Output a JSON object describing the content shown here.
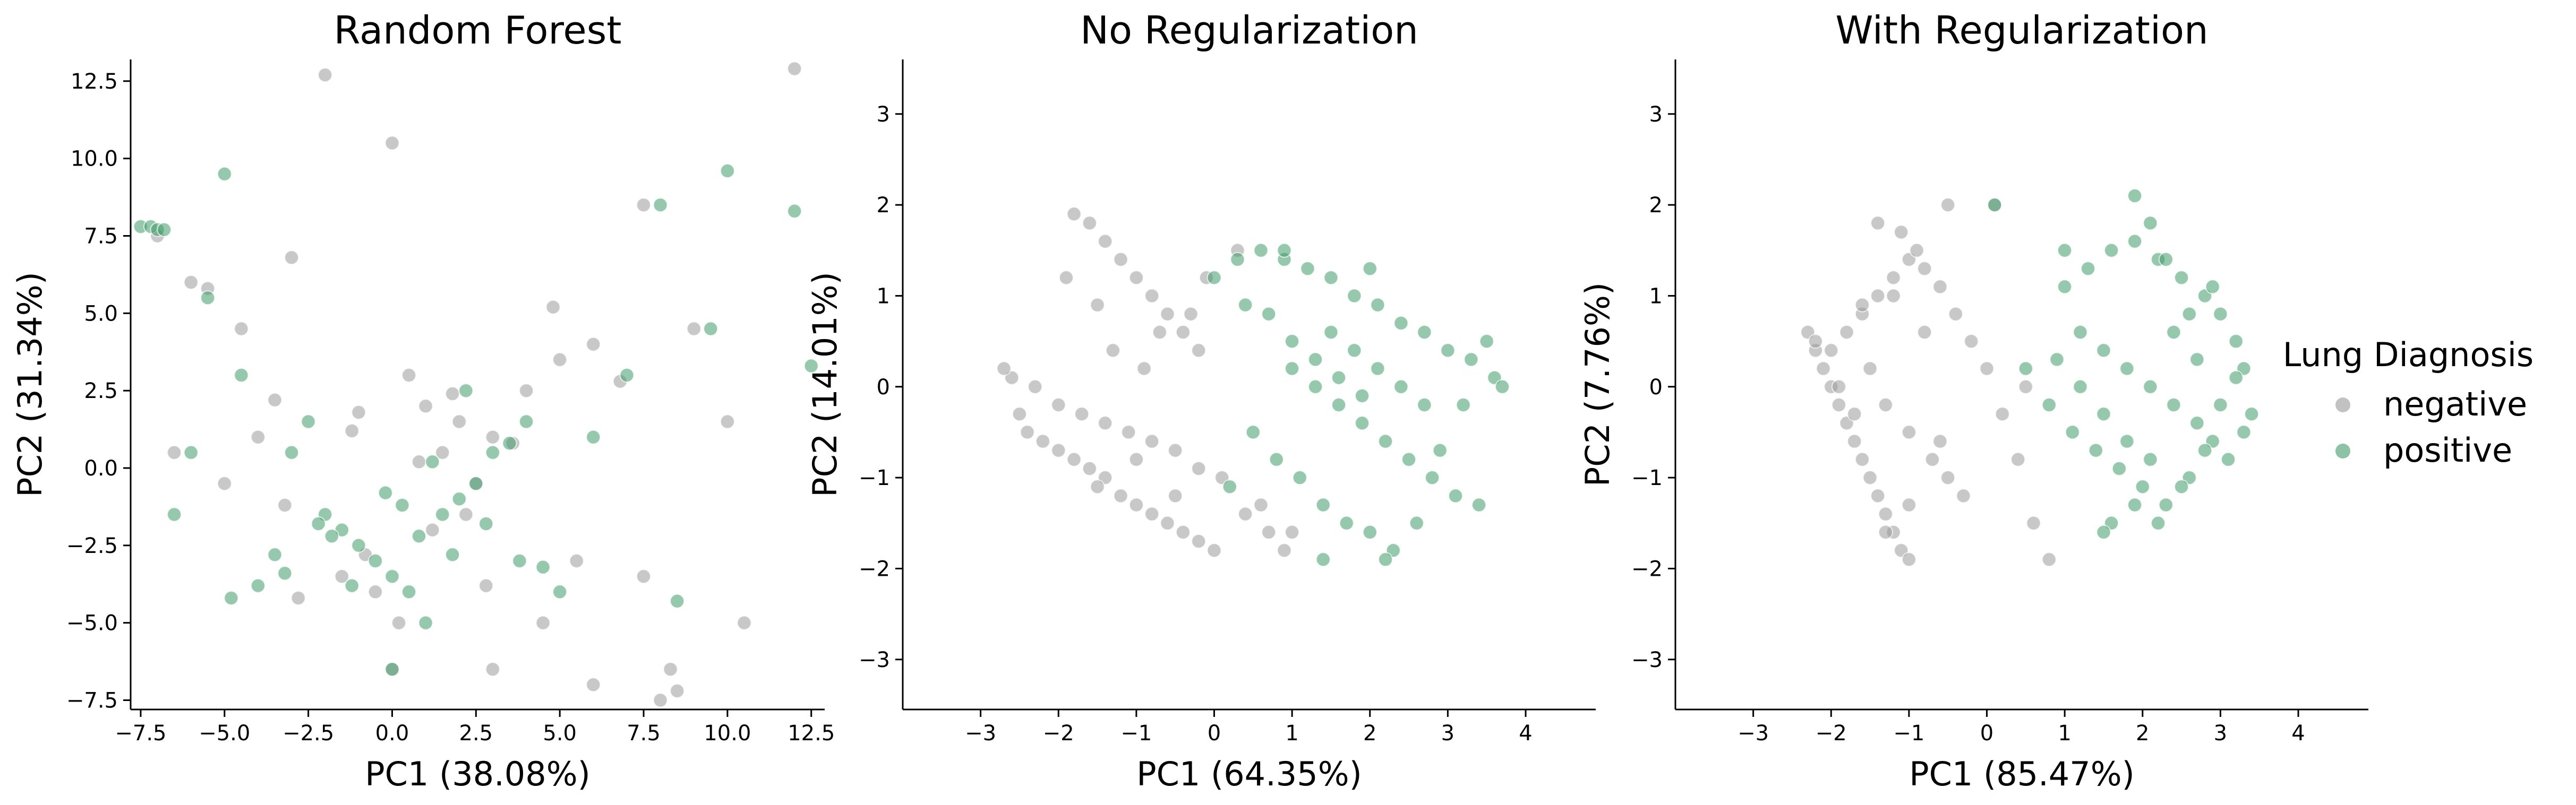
{
  "colors": {
    "negative": "#9a9a9a",
    "positive": "#3f9a6a",
    "axis": "#000000"
  },
  "legend": {
    "title": "Lung Diagnosis",
    "placement": "right",
    "entries": [
      {
        "label": "negative",
        "color": "#9a9a9a"
      },
      {
        "label": "positive",
        "color": "#3f9a6a"
      }
    ]
  },
  "chart_data": [
    {
      "type": "scatter",
      "title": "Random Forest",
      "xlabel": "PC1 (38.08%)",
      "ylabel": "PC2 (31.34%)",
      "xlim": [
        -7.8,
        12.9
      ],
      "ylim": [
        -7.8,
        13.2
      ],
      "xticks": [
        -7.5,
        -5.0,
        -2.5,
        0.0,
        2.5,
        5.0,
        7.5,
        10.0,
        12.5
      ],
      "xtick_labels": [
        "−7.5",
        "−5.0",
        "−2.5",
        "0.0",
        "2.5",
        "5.0",
        "7.5",
        "10.0",
        "12.5"
      ],
      "yticks": [
        -7.5,
        -5.0,
        -2.5,
        0.0,
        2.5,
        5.0,
        7.5,
        10.0,
        12.5
      ],
      "ytick_labels": [
        "−7.5",
        "−5.0",
        "−2.5",
        "0.0",
        "2.5",
        "5.0",
        "7.5",
        "10.0",
        "12.5"
      ],
      "grid": false,
      "series": [
        {
          "name": "negative",
          "color": "#9a9a9a",
          "x": [
            -2.0,
            0.0,
            12.0,
            -5.5,
            -3.0,
            -7.0,
            -4.5,
            0.5,
            1.0,
            2.0,
            3.0,
            4.0,
            5.0,
            6.0,
            7.5,
            -6.0,
            -1.0,
            1.5,
            2.5,
            -3.5,
            -4.0,
            0.0,
            0.2,
            -0.5,
            6.0,
            8.0,
            10.5,
            7.5,
            8.5,
            8.3,
            3.0,
            4.5,
            5.5,
            -2.8,
            -1.5,
            1.2,
            2.2,
            -0.8,
            0.8,
            -3.2,
            3.6,
            6.8,
            4.8,
            -5.0,
            -6.5,
            9.0,
            10.0,
            2.8,
            1.8,
            -1.2
          ],
          "y": [
            12.7,
            10.5,
            12.9,
            5.8,
            6.8,
            7.5,
            4.5,
            3.0,
            2.0,
            1.5,
            1.0,
            2.5,
            3.5,
            4.0,
            8.5,
            6.0,
            1.8,
            0.5,
            -0.5,
            2.2,
            1.0,
            -6.5,
            -5.0,
            -4.0,
            -7.0,
            -7.5,
            -5.0,
            -3.5,
            -7.2,
            -6.5,
            -6.5,
            -5.0,
            -3.0,
            -4.2,
            -3.5,
            -2.0,
            -1.5,
            -2.8,
            0.2,
            -1.2,
            0.8,
            2.8,
            5.2,
            -0.5,
            0.5,
            4.5,
            1.5,
            -3.8,
            2.4,
            1.2
          ]
        },
        {
          "name": "positive",
          "color": "#3f9a6a",
          "x": [
            -7.5,
            -7.2,
            -7.0,
            -6.8,
            -5.5,
            -5.0,
            -4.5,
            -3.0,
            -2.5,
            -2.0,
            -1.5,
            -1.0,
            -0.5,
            0.0,
            0.5,
            1.0,
            1.5,
            2.0,
            2.5,
            3.0,
            3.5,
            4.0,
            6.0,
            7.0,
            8.0,
            9.5,
            10.0,
            12.0,
            12.5,
            -6.0,
            -6.5,
            -4.0,
            -3.5,
            -1.8,
            0.8,
            1.8,
            2.8,
            -0.2,
            0.3,
            -2.2,
            1.2,
            3.8,
            4.5,
            5.0,
            8.5,
            -3.2,
            -1.2,
            2.2,
            -4.8,
            0.0
          ],
          "y": [
            7.8,
            7.8,
            7.7,
            7.7,
            5.5,
            9.5,
            3.0,
            0.5,
            1.5,
            -1.5,
            -2.0,
            -2.5,
            -3.0,
            -3.5,
            -4.0,
            -5.0,
            -1.5,
            -1.0,
            -0.5,
            0.5,
            0.8,
            1.5,
            1.0,
            3.0,
            8.5,
            4.5,
            9.6,
            8.3,
            3.3,
            0.5,
            -1.5,
            -3.8,
            -2.8,
            -2.2,
            -2.2,
            -2.8,
            -1.8,
            -0.8,
            -1.2,
            -1.8,
            0.2,
            -3.0,
            -3.2,
            -4.0,
            -4.3,
            -3.4,
            -3.8,
            2.5,
            -4.2,
            -6.5
          ]
        }
      ]
    },
    {
      "type": "scatter",
      "title": "No Regularization",
      "xlabel": "PC1 (64.35%)",
      "ylabel": "PC2 (14.01%)",
      "xlim": [
        -4.0,
        4.9
      ],
      "ylim": [
        -3.55,
        3.6
      ],
      "xticks": [
        -3,
        -2,
        -1,
        0,
        1,
        2,
        3,
        4
      ],
      "xtick_labels": [
        "−3",
        "−2",
        "−1",
        "0",
        "1",
        "2",
        "3",
        "4"
      ],
      "yticks": [
        -3,
        -2,
        -1,
        0,
        1,
        2,
        3
      ],
      "ytick_labels": [
        "−3",
        "−2",
        "−1",
        "0",
        "1",
        "2",
        "3"
      ],
      "grid": false,
      "series": [
        {
          "name": "negative",
          "color": "#9a9a9a",
          "x": [
            -2.5,
            -2.4,
            -2.2,
            -2.0,
            -1.8,
            -1.6,
            -1.4,
            -1.2,
            -1.0,
            -0.8,
            -0.6,
            -0.4,
            -0.2,
            0.0,
            -1.8,
            -1.6,
            -1.4,
            -1.2,
            -1.0,
            -0.8,
            -0.6,
            -0.4,
            -0.2,
            -2.6,
            -2.3,
            -2.0,
            -1.7,
            -1.4,
            -1.1,
            -0.8,
            -0.5,
            -0.2,
            -1.9,
            -1.5,
            -1.3,
            -0.9,
            -0.7,
            -1.5,
            -1.0,
            -0.5,
            0.1,
            0.4,
            0.7,
            1.0,
            0.6,
            -0.3,
            -0.1,
            0.3,
            0.9,
            -2.7
          ],
          "y": [
            -0.3,
            -0.5,
            -0.6,
            -0.7,
            -0.8,
            -0.9,
            -1.0,
            -1.2,
            -1.3,
            -1.4,
            -1.5,
            -1.6,
            -1.7,
            -1.8,
            1.9,
            1.8,
            1.6,
            1.4,
            1.2,
            1.0,
            0.8,
            0.6,
            0.4,
            0.1,
            0.0,
            -0.2,
            -0.3,
            -0.4,
            -0.5,
            -0.6,
            -0.7,
            -0.9,
            1.2,
            0.9,
            0.4,
            0.2,
            0.6,
            -1.1,
            -0.8,
            -1.2,
            -1.0,
            -1.4,
            -1.6,
            -1.6,
            -1.3,
            0.8,
            1.2,
            1.5,
            -1.8,
            0.2
          ]
        },
        {
          "name": "positive",
          "color": "#3f9a6a",
          "x": [
            0.0,
            0.3,
            0.6,
            0.9,
            1.2,
            1.5,
            1.8,
            2.1,
            2.4,
            2.7,
            3.0,
            3.3,
            3.6,
            3.7,
            1.0,
            1.3,
            1.6,
            1.9,
            2.2,
            2.5,
            2.8,
            3.1,
            3.4,
            0.5,
            0.8,
            1.1,
            1.4,
            1.7,
            2.0,
            2.3,
            2.6,
            2.9,
            1.5,
            1.8,
            2.1,
            2.4,
            2.7,
            0.4,
            0.7,
            1.0,
            1.3,
            1.6,
            1.9,
            2.2,
            3.2,
            3.5,
            0.2,
            0.9,
            1.4,
            2.0
          ],
          "y": [
            1.2,
            1.4,
            1.5,
            1.4,
            1.3,
            1.2,
            1.0,
            0.9,
            0.7,
            0.6,
            0.4,
            0.3,
            0.1,
            0.0,
            0.2,
            0.0,
            -0.2,
            -0.4,
            -0.6,
            -0.8,
            -1.0,
            -1.2,
            -1.3,
            -0.5,
            -0.8,
            -1.0,
            -1.3,
            -1.5,
            -1.6,
            -1.8,
            -1.5,
            -0.7,
            0.6,
            0.4,
            0.2,
            0.0,
            -0.2,
            0.9,
            0.8,
            0.5,
            0.3,
            0.1,
            -0.1,
            -1.9,
            -0.2,
            0.5,
            -1.1,
            1.5,
            -1.9,
            1.3
          ]
        }
      ]
    },
    {
      "type": "scatter",
      "title": "With Regularization",
      "xlabel": "PC1 (85.47%)",
      "ylabel": "PC2 (7.76%)",
      "xlim": [
        -4.0,
        4.9
      ],
      "ylim": [
        -3.55,
        3.6
      ],
      "xticks": [
        -3,
        -2,
        -1,
        0,
        1,
        2,
        3,
        4
      ],
      "xtick_labels": [
        "−3",
        "−2",
        "−1",
        "0",
        "1",
        "2",
        "3",
        "4"
      ],
      "yticks": [
        -3,
        -2,
        -1,
        0,
        1,
        2,
        3
      ],
      "ytick_labels": [
        "−3",
        "−2",
        "−1",
        "0",
        "1",
        "2",
        "3"
      ],
      "grid": false,
      "series": [
        {
          "name": "negative",
          "color": "#9a9a9a",
          "x": [
            -2.3,
            -2.2,
            -2.1,
            -2.0,
            -1.9,
            -1.8,
            -1.7,
            -1.6,
            -1.5,
            -1.4,
            -1.3,
            -1.2,
            -1.1,
            -1.0,
            -2.2,
            -2.0,
            -1.8,
            -1.6,
            -1.4,
            -1.2,
            -1.0,
            -0.8,
            -0.6,
            -0.4,
            -0.2,
            0.0,
            0.2,
            0.4,
            -1.5,
            -1.3,
            -1.0,
            -0.7,
            -0.5,
            -0.3,
            -1.9,
            -1.7,
            -1.4,
            -1.1,
            -0.9,
            -1.2,
            -0.8,
            -0.6,
            0.6,
            0.8,
            -1.3,
            -0.5,
            0.1,
            0.5,
            -1.0,
            -1.6
          ],
          "y": [
            0.6,
            0.4,
            0.2,
            0.0,
            -0.2,
            -0.4,
            -0.6,
            -0.8,
            -1.0,
            -1.2,
            -1.4,
            -1.6,
            -1.8,
            -1.9,
            0.5,
            0.4,
            0.6,
            0.8,
            1.0,
            1.2,
            1.4,
            1.3,
            1.1,
            0.8,
            0.5,
            0.2,
            -0.3,
            -0.8,
            0.2,
            -0.2,
            -0.5,
            -0.8,
            -1.0,
            -1.2,
            0.0,
            -0.3,
            1.8,
            1.7,
            1.5,
            1.0,
            0.6,
            -0.6,
            -1.5,
            -1.9,
            -1.6,
            2.0,
            2.0,
            0.0,
            -1.3,
            0.9
          ]
        },
        {
          "name": "positive",
          "color": "#3f9a6a",
          "x": [
            1.0,
            1.3,
            1.6,
            1.9,
            2.2,
            2.5,
            2.8,
            3.0,
            3.2,
            3.3,
            3.4,
            1.2,
            1.5,
            1.8,
            2.1,
            2.4,
            2.7,
            2.9,
            3.1,
            0.8,
            1.1,
            1.4,
            1.7,
            2.0,
            2.3,
            2.6,
            2.8,
            3.0,
            3.2,
            1.6,
            1.9,
            2.2,
            2.5,
            2.7,
            0.9,
            1.2,
            1.5,
            1.8,
            2.1,
            2.4,
            2.6,
            2.9,
            0.1,
            1.0,
            1.5,
            2.1,
            0.5,
            2.3,
            3.3,
            1.9
          ],
          "y": [
            1.1,
            1.3,
            1.5,
            1.6,
            1.4,
            1.2,
            1.0,
            0.8,
            0.5,
            0.2,
            -0.3,
            0.6,
            0.4,
            0.2,
            0.0,
            -0.2,
            -0.4,
            -0.6,
            -0.8,
            -0.2,
            -0.5,
            -0.7,
            -0.9,
            -1.1,
            -1.3,
            -1.0,
            -0.7,
            -0.2,
            0.1,
            -1.5,
            -1.3,
            -1.5,
            -1.1,
            0.3,
            0.3,
            0.0,
            -0.3,
            -0.6,
            -0.8,
            0.6,
            0.8,
            1.1,
            2.0,
            1.5,
            -1.6,
            1.8,
            0.2,
            1.4,
            -0.5,
            2.1
          ]
        }
      ]
    }
  ]
}
